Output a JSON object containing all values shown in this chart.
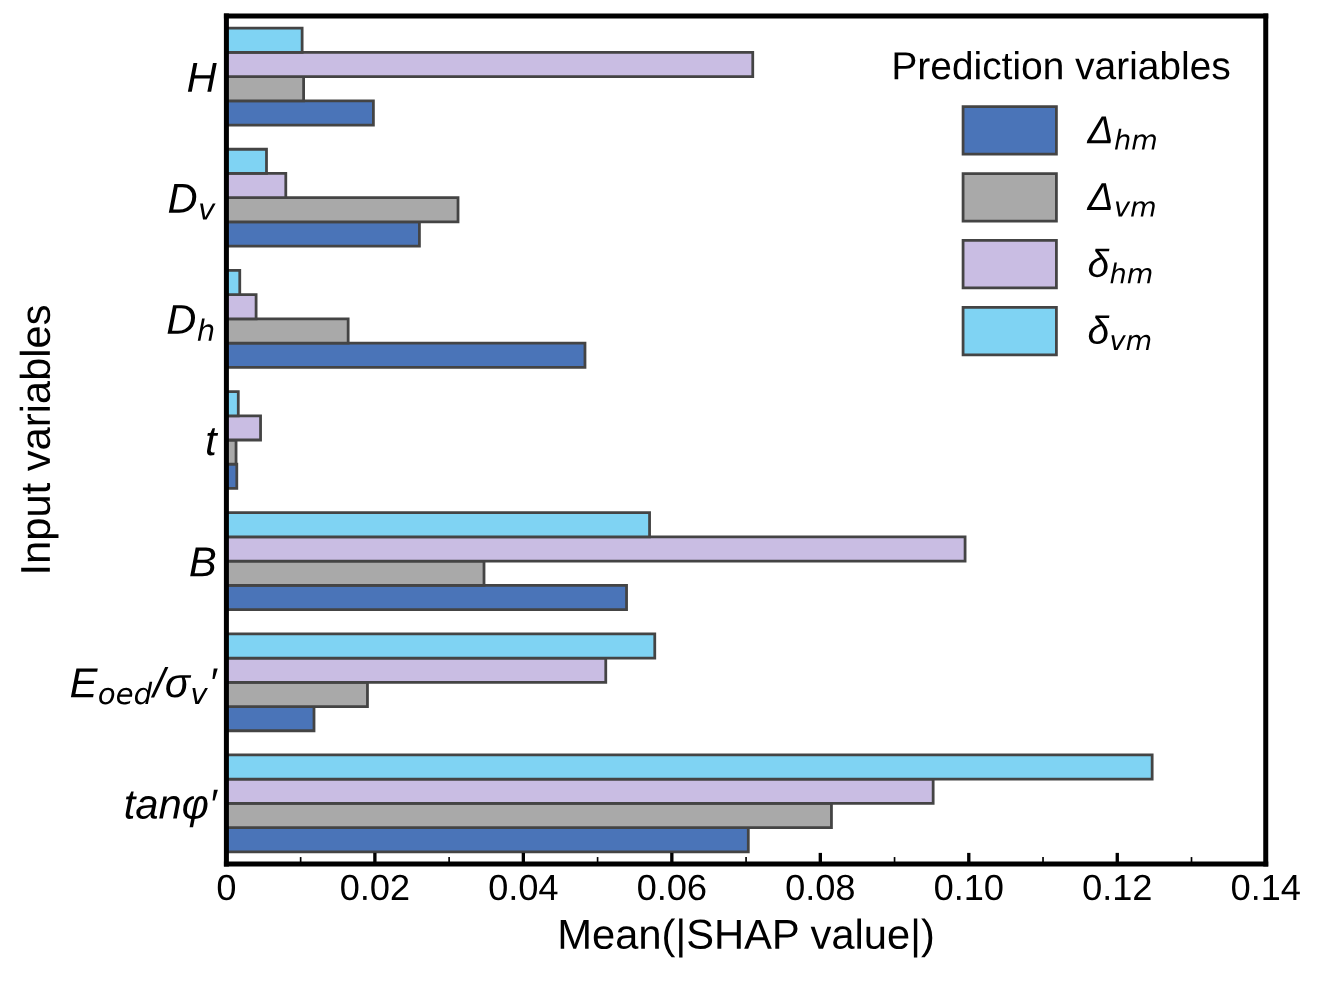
{
  "chart_data": {
    "type": "bar",
    "orientation": "horizontal",
    "xlabel": "Mean(|SHAP value|)",
    "ylabel": "Input variables",
    "legend_title": "Prediction variables",
    "legend": "top right",
    "grid": false,
    "categories": [
      "H",
      "D$_{v}$",
      "D$_{h}$",
      "t",
      "B",
      "E$_{oed}$/σ$_{v}$′",
      "tanφ′"
    ],
    "series": [
      {
        "name": "Δ$_{hm}$",
        "color": "#4a74b8",
        "values": [
          0.0198,
          0.026,
          0.0483,
          0.0014,
          0.0539,
          0.0118,
          0.0703
        ]
      },
      {
        "name": "Δ$_{vm}$",
        "color": "#a9a9a9",
        "values": [
          0.0104,
          0.0312,
          0.0164,
          0.0013,
          0.0347,
          0.019,
          0.0815
        ]
      },
      {
        "name": "δ$_{hm}$",
        "color": "#c9bde3",
        "values": [
          0.0709,
          0.008,
          0.004,
          0.0046,
          0.0995,
          0.0511,
          0.0952
        ]
      },
      {
        "name": "δ$_{vm}$",
        "color": "#7fd3f3",
        "values": [
          0.0102,
          0.0054,
          0.0018,
          0.0016,
          0.057,
          0.0577,
          0.1247
        ]
      }
    ],
    "xlim": [
      0,
      0.14
    ],
    "xticks": [
      0,
      0.02,
      0.04,
      0.06,
      0.08,
      {
        "value": 0.1,
        "label": "0.10"
      },
      0.12,
      0.14
    ]
  }
}
